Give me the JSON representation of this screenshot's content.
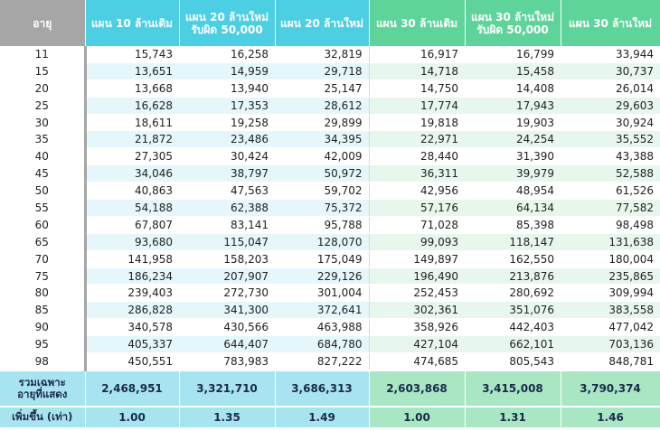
{
  "headers": {
    "age": "อายุ",
    "p10_old": "แผน 10 ล้านเดิม",
    "p20_new_l1": "แผน 20 ล้านใหม่",
    "p20_new_l2": "รับผิด 50,000",
    "p20_new": "แผน 20 ล้านใหม่",
    "p30_old": "แผน 30 ล้านเดิม",
    "p30_new_l1": "แผน 30 ล้านใหม่",
    "p30_new_l2": "รับผิด 50,000",
    "p30_new": "แผน 30 ล้านใหม่"
  },
  "rows": [
    [
      "11",
      "15,743",
      "16,258",
      "32,819",
      "16,917",
      "16,799",
      "33,944"
    ],
    [
      "15",
      "13,651",
      "14,959",
      "29,718",
      "14,718",
      "15,458",
      "30,737"
    ],
    [
      "20",
      "13,668",
      "13,940",
      "25,147",
      "14,750",
      "14,408",
      "26,014"
    ],
    [
      "25",
      "16,628",
      "17,353",
      "28,612",
      "17,774",
      "17,943",
      "29,603"
    ],
    [
      "30",
      "18,611",
      "19,258",
      "29,899",
      "19,818",
      "19,903",
      "30,924"
    ],
    [
      "35",
      "21,872",
      "23,486",
      "34,395",
      "22,971",
      "24,254",
      "35,552"
    ],
    [
      "40",
      "27,305",
      "30,424",
      "42,009",
      "28,440",
      "31,390",
      "43,388"
    ],
    [
      "45",
      "34,046",
      "38,797",
      "50,972",
      "36,311",
      "39,979",
      "52,588"
    ],
    [
      "50",
      "40,863",
      "47,563",
      "59,702",
      "42,956",
      "48,954",
      "61,526"
    ],
    [
      "55",
      "54,188",
      "62,388",
      "75,372",
      "57,176",
      "64,134",
      "77,582"
    ],
    [
      "60",
      "67,807",
      "83,141",
      "95,788",
      "71,028",
      "85,398",
      "98,498"
    ],
    [
      "65",
      "93,680",
      "115,047",
      "128,070",
      "99,093",
      "118,147",
      "131,638"
    ],
    [
      "70",
      "141,958",
      "158,203",
      "175,049",
      "149,897",
      "162,550",
      "180,004"
    ],
    [
      "75",
      "186,234",
      "207,907",
      "229,126",
      "196,490",
      "213,876",
      "235,865"
    ],
    [
      "80",
      "239,403",
      "272,730",
      "301,004",
      "252,453",
      "280,692",
      "309,994"
    ],
    [
      "85",
      "286,828",
      "341,300",
      "372,641",
      "302,361",
      "351,076",
      "383,558"
    ],
    [
      "90",
      "340,578",
      "430,566",
      "463,988",
      "358,926",
      "442,403",
      "477,042"
    ],
    [
      "95",
      "405,337",
      "644,407",
      "684,780",
      "427,104",
      "662,101",
      "703,136"
    ],
    [
      "98",
      "450,551",
      "783,983",
      "827,222",
      "474,685",
      "805,543",
      "848,781"
    ]
  ],
  "totals": {
    "label_l1": "รวมเฉพาะ",
    "label_l2": "อายุที่แสดง",
    "values": [
      "2,468,951",
      "3,321,710",
      "3,686,313",
      "2,603,868",
      "3,415,008",
      "3,790,374"
    ]
  },
  "increase": {
    "label": "เพิ่มขึ้น (เท่า)",
    "values": [
      "1.00",
      "1.35",
      "1.49",
      "1.00",
      "1.31",
      "1.46"
    ]
  },
  "colors": {
    "header_blue": "#4ccfe3",
    "header_green": "#5ed49a",
    "header_age": "#a6a6a6"
  }
}
